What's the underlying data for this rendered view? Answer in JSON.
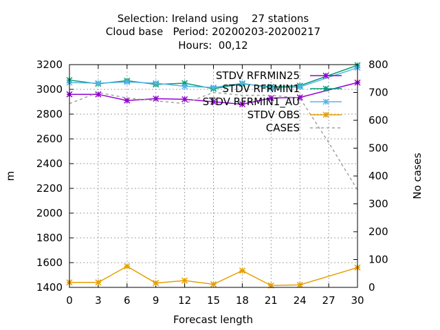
{
  "chart_data": {
    "type": "line",
    "title_lines": [
      "Selection: Ireland using    27 stations",
      "Cloud base   Period: 20200203-20200217",
      "Hours:  00,12"
    ],
    "xlabel": "Forecast length",
    "ylabel": "m",
    "y2label": "No cases",
    "xlim": [
      0,
      30
    ],
    "ylim": [
      1400,
      3200
    ],
    "y2lim": [
      0,
      800
    ],
    "x_ticks": [
      0,
      3,
      6,
      9,
      12,
      15,
      18,
      21,
      24,
      27,
      30
    ],
    "y_ticks": [
      1400,
      1600,
      1800,
      2000,
      2200,
      2400,
      2600,
      2800,
      3000,
      3200
    ],
    "y2_ticks": [
      0,
      100,
      200,
      300,
      400,
      500,
      600,
      700,
      800
    ],
    "grid": true,
    "legend_position": "top-right",
    "series": [
      {
        "name": "STDV RFRMIN25",
        "axis": "y",
        "color": "#9400d3",
        "marker": "star",
        "dash": false,
        "x": [
          0,
          3,
          6,
          9,
          12,
          15,
          18,
          21,
          24,
          30
        ],
        "values": [
          2960,
          2960,
          2910,
          2925,
          2920,
          2900,
          2880,
          2930,
          2935,
          3055
        ]
      },
      {
        "name": "STDV RFRMIN1",
        "axis": "y",
        "color": "#009e73",
        "marker": "star",
        "dash": false,
        "x": [
          0,
          3,
          6,
          9,
          12,
          15,
          18,
          21,
          24,
          30
        ],
        "values": [
          3075,
          3045,
          3070,
          3040,
          3050,
          3005,
          3045,
          3020,
          3030,
          3195
        ]
      },
      {
        "name": "STDV RFRMIN1_AU",
        "axis": "y",
        "color": "#56b4e9",
        "marker": "star",
        "dash": false,
        "x": [
          0,
          3,
          6,
          9,
          12,
          15,
          18,
          21,
          24,
          30
        ],
        "values": [
          3055,
          3050,
          3060,
          3050,
          3025,
          3015,
          3050,
          3010,
          3020,
          3175
        ]
      },
      {
        "name": "STDV OBS",
        "axis": "y",
        "color": "#e69f00",
        "marker": "star",
        "dash": false,
        "x": [
          0,
          3,
          6,
          9,
          12,
          15,
          18,
          21,
          24,
          30
        ],
        "values": [
          1440,
          1440,
          1570,
          1435,
          1455,
          1425,
          1535,
          1415,
          1420,
          1560
        ]
      },
      {
        "name": "CASES",
        "axis": "y2",
        "color": "#a0a0a0",
        "marker": "none",
        "dash": true,
        "x": [
          0,
          3,
          6,
          9,
          12,
          15,
          18,
          21,
          24,
          27,
          30
        ],
        "values": [
          660,
          700,
          680,
          670,
          660,
          700,
          690,
          690,
          680,
          520,
          350
        ]
      }
    ]
  }
}
